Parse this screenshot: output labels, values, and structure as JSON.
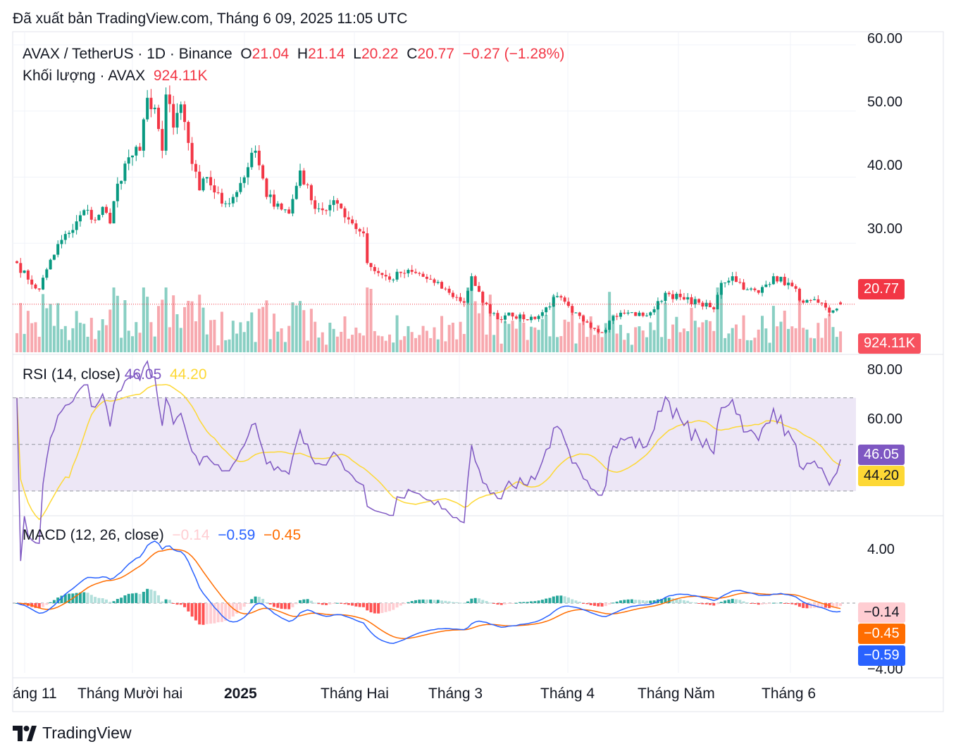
{
  "published": "Đã xuất bản TradingView.com, Tháng 6 09, 2025 11:05 UTC",
  "brand": {
    "name": "TradingView",
    "logo_icon": "tradingview-logo-icon"
  },
  "colors": {
    "up": "#089981",
    "down": "#f23645",
    "rsi": "#7e57c2",
    "rsi_ma": "#fdd835",
    "macd": "#2962ff",
    "signal": "#ff6d00",
    "rsi_band": "#ede7f6"
  },
  "price_pane": {
    "symbol_line": "AVAX / TetherUS · 1D · Binance",
    "open_label": "O",
    "open": "21.04",
    "high_label": "H",
    "high": "21.14",
    "low_label": "L",
    "low": "20.22",
    "close_label": "C",
    "close": "20.77",
    "change": "−0.27 (−1.28%)",
    "volume_line": "Khối lượng · AVAX",
    "volume": "924.11K",
    "price_tag": "20.77",
    "volume_tag": "924.11K",
    "y_ticks": [
      "60.00",
      "50.00",
      "40.00",
      "30.00"
    ]
  },
  "rsi_pane": {
    "label": "RSI (14, close)",
    "rsi_value": "46.05",
    "rsi_ma_value": "44.20",
    "y_ticks": [
      "80.00",
      "60.00"
    ],
    "tag_rsi": "46.05",
    "tag_ma": "44.20"
  },
  "macd_pane": {
    "label": "MACD (12, 26, close)",
    "hist_value": "−0.14",
    "macd_value": "−0.59",
    "signal_value": "−0.45",
    "y_ticks": [
      "4.00",
      "−4.00"
    ],
    "tag_hist": "−0.14",
    "tag_signal": "−0.45",
    "tag_macd": "−0.59"
  },
  "x_axis": [
    "áng 11",
    "Tháng Mười hai",
    "2025",
    "Tháng Hai",
    "Tháng 3",
    "Tháng 4",
    "Tháng Năm",
    "Tháng 6"
  ],
  "chart_data": {
    "type": "candlestick",
    "title": "AVAX / TetherUS · 1D · Binance",
    "x_range": [
      "2024-10-31",
      "2025-06-09"
    ],
    "anchors_close": [
      [
        "2024-10-31",
        27.0
      ],
      [
        "2024-11-03",
        24.5
      ],
      [
        "2024-11-06",
        23.0
      ],
      [
        "2024-11-09",
        27.5
      ],
      [
        "2024-11-12",
        30.5
      ],
      [
        "2024-11-15",
        32.0
      ],
      [
        "2024-11-18",
        35.0
      ],
      [
        "2024-11-21",
        33.5
      ],
      [
        "2024-11-23",
        35.5
      ],
      [
        "2024-11-25",
        33.0
      ],
      [
        "2024-11-27",
        39.0
      ],
      [
        "2024-11-30",
        43.0
      ],
      [
        "2024-12-03",
        44.0
      ],
      [
        "2024-12-05",
        52.0
      ],
      [
        "2024-12-07",
        50.5
      ],
      [
        "2024-12-09",
        44.0
      ],
      [
        "2024-12-10",
        52.5
      ],
      [
        "2024-12-12",
        47.5
      ],
      [
        "2024-12-14",
        51.0
      ],
      [
        "2024-12-17",
        42.0
      ],
      [
        "2024-12-19",
        38.0
      ],
      [
        "2024-12-21",
        40.0
      ],
      [
        "2024-12-25",
        36.0
      ],
      [
        "2024-12-28",
        37.0
      ],
      [
        "2025-01-01",
        41.5
      ],
      [
        "2025-01-03",
        44.0
      ],
      [
        "2025-01-06",
        37.0
      ],
      [
        "2025-01-09",
        36.0
      ],
      [
        "2025-01-12",
        34.5
      ],
      [
        "2025-01-15",
        41.0
      ],
      [
        "2025-01-18",
        36.5
      ],
      [
        "2025-01-21",
        35.0
      ],
      [
        "2025-01-25",
        36.0
      ],
      [
        "2025-01-29",
        33.0
      ],
      [
        "2025-02-01",
        31.5
      ],
      [
        "2025-02-02",
        27.0
      ],
      [
        "2025-02-05",
        25.5
      ],
      [
        "2025-02-08",
        24.5
      ],
      [
        "2025-02-11",
        25.5
      ],
      [
        "2025-02-15",
        25.5
      ],
      [
        "2025-02-20",
        24.0
      ],
      [
        "2025-02-24",
        22.5
      ],
      [
        "2025-02-28",
        21.0
      ],
      [
        "2025-03-02",
        25.0
      ],
      [
        "2025-03-05",
        21.0
      ],
      [
        "2025-03-09",
        18.5
      ],
      [
        "2025-03-12",
        19.5
      ],
      [
        "2025-03-16",
        18.5
      ],
      [
        "2025-03-20",
        19.0
      ],
      [
        "2025-03-25",
        22.0
      ],
      [
        "2025-03-29",
        19.5
      ],
      [
        "2025-04-02",
        18.0
      ],
      [
        "2025-04-06",
        16.5
      ],
      [
        "2025-04-09",
        19.0
      ],
      [
        "2025-04-13",
        19.5
      ],
      [
        "2025-04-17",
        19.0
      ],
      [
        "2025-04-20",
        20.0
      ],
      [
        "2025-04-23",
        22.5
      ],
      [
        "2025-04-28",
        21.5
      ],
      [
        "2025-05-02",
        21.0
      ],
      [
        "2025-05-06",
        20.0
      ],
      [
        "2025-05-08",
        24.0
      ],
      [
        "2025-05-11",
        25.0
      ],
      [
        "2025-05-15",
        23.0
      ],
      [
        "2025-05-18",
        22.5
      ],
      [
        "2025-05-22",
        25.0
      ],
      [
        "2025-05-27",
        23.5
      ],
      [
        "2025-05-30",
        21.0
      ],
      [
        "2025-06-03",
        21.0
      ],
      [
        "2025-06-06",
        19.5
      ],
      [
        "2025-06-09",
        20.77
      ]
    ],
    "last_bar": {
      "open": 21.04,
      "high": 21.14,
      "low": 20.22,
      "close": 20.77,
      "volume": "924.11K"
    },
    "price_range": [
      13.5,
      62
    ],
    "rsi_range": [
      20,
      85
    ],
    "rsi_bands": [
      70,
      30
    ],
    "macd_range": [
      -5.8,
      6.5
    ]
  }
}
